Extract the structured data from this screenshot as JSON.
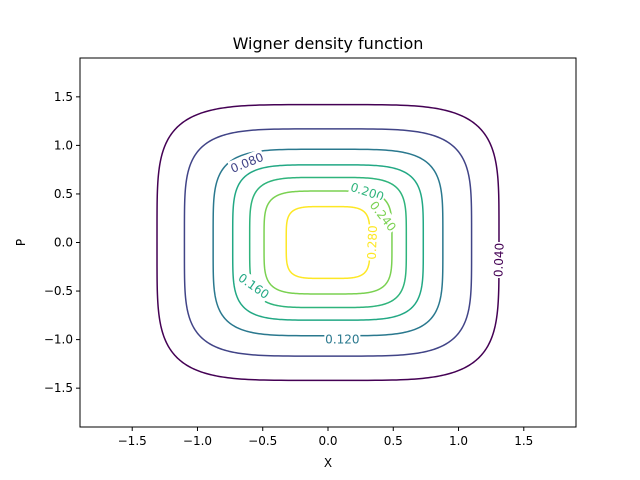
{
  "chart_data": {
    "type": "contour",
    "title": "Wigner density function",
    "xlabel": "X",
    "ylabel": "P",
    "xlim": [
      -1.9,
      1.9
    ],
    "ylim": [
      -1.9,
      1.9
    ],
    "grid": false,
    "xticks": [
      -1.5,
      -1.0,
      -0.5,
      0.0,
      0.5,
      1.0,
      1.5
    ],
    "xtick_labels": [
      "−1.5",
      "−1.0",
      "−0.5",
      "0.0",
      "0.5",
      "1.0",
      "1.5"
    ],
    "yticks": [
      -1.5,
      -1.0,
      -0.5,
      0.0,
      0.5,
      1.0,
      1.5
    ],
    "ytick_labels": [
      "−1.5",
      "−1.0",
      "−0.5",
      "0.0",
      "0.5",
      "1.0",
      "1.5"
    ],
    "levels": [
      {
        "value": 0.04,
        "label": "0.040",
        "color": "#440154",
        "half_width": 1.31,
        "half_height": 1.42,
        "label_at": [
          1.31,
          -0.18
        ],
        "label_rotation": -88
      },
      {
        "value": 0.08,
        "label": "0.080",
        "color": "#414487",
        "half_width": 1.1,
        "half_height": 1.17,
        "label_at": [
          -0.62,
          0.82
        ],
        "label_rotation": -22
      },
      {
        "value": 0.12,
        "label": "0.120",
        "color": "#2a788e",
        "half_width": 0.88,
        "half_height": 0.96,
        "label_at": [
          0.11,
          -1.0
        ],
        "label_rotation": 0
      },
      {
        "value": 0.16,
        "label": "0.160",
        "color": "#22a884",
        "half_width": 0.73,
        "half_height": 0.8,
        "label_at": [
          -0.57,
          -0.45
        ],
        "label_rotation": 35
      },
      {
        "value": 0.2,
        "label": "0.200",
        "color": "#2fb47c",
        "half_width": 0.6,
        "half_height": 0.67,
        "label_at": [
          0.3,
          0.52
        ],
        "label_rotation": 18
      },
      {
        "value": 0.24,
        "label": "0.240",
        "color": "#7ad151",
        "half_width": 0.49,
        "half_height": 0.53,
        "label_at": [
          0.42,
          0.27
        ],
        "label_rotation": 52
      },
      {
        "value": 0.28,
        "label": "0.280",
        "color": "#fde725",
        "half_width": 0.32,
        "half_height": 0.37,
        "label_at": [
          0.34,
          0.0
        ],
        "label_rotation": -88
      }
    ]
  }
}
